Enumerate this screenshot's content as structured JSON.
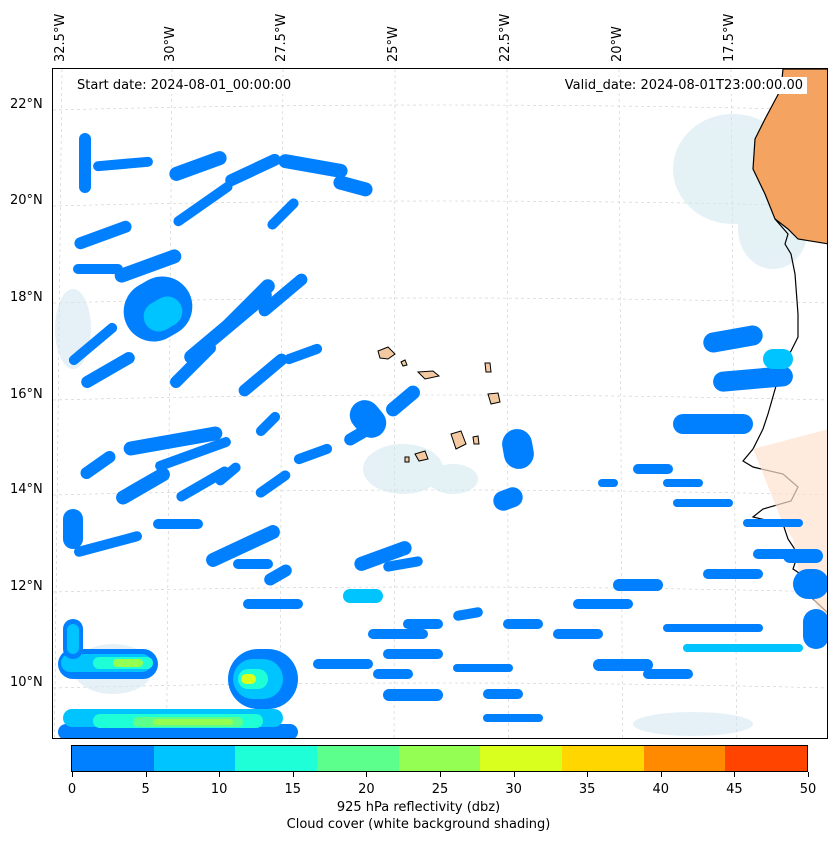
{
  "map": {
    "start_date": "Start date: 2024-08-01_00:00:00",
    "valid_date": "Valid_date: 2024-08-01T23:00:00.00",
    "longitude_labels": [
      "32.5°W",
      "30°W",
      "27.5°W",
      "25°W",
      "22.5°W",
      "20°W",
      "17.5°W"
    ],
    "latitude_labels": [
      "22°N",
      "20°N",
      "18°N",
      "16°N",
      "14°N",
      "12°N",
      "10°N"
    ],
    "land_color": "#f4a460",
    "coastline_color": "#000000",
    "cloud_shading_color": "#cfe6ee"
  },
  "colorbar": {
    "ticks": [
      "0",
      "5",
      "10",
      "15",
      "20",
      "25",
      "30",
      "35",
      "40",
      "45",
      "50"
    ],
    "colors": [
      "#0080ff",
      "#00c4ff",
      "#1effd8",
      "#5cff8c",
      "#94ff52",
      "#d8ff1e",
      "#ffd600",
      "#ff8a00",
      "#ff4400"
    ],
    "label_line1": "925 hPa reflectivity (dbz)",
    "label_line2": "Cloud cover (white background shading)"
  }
}
